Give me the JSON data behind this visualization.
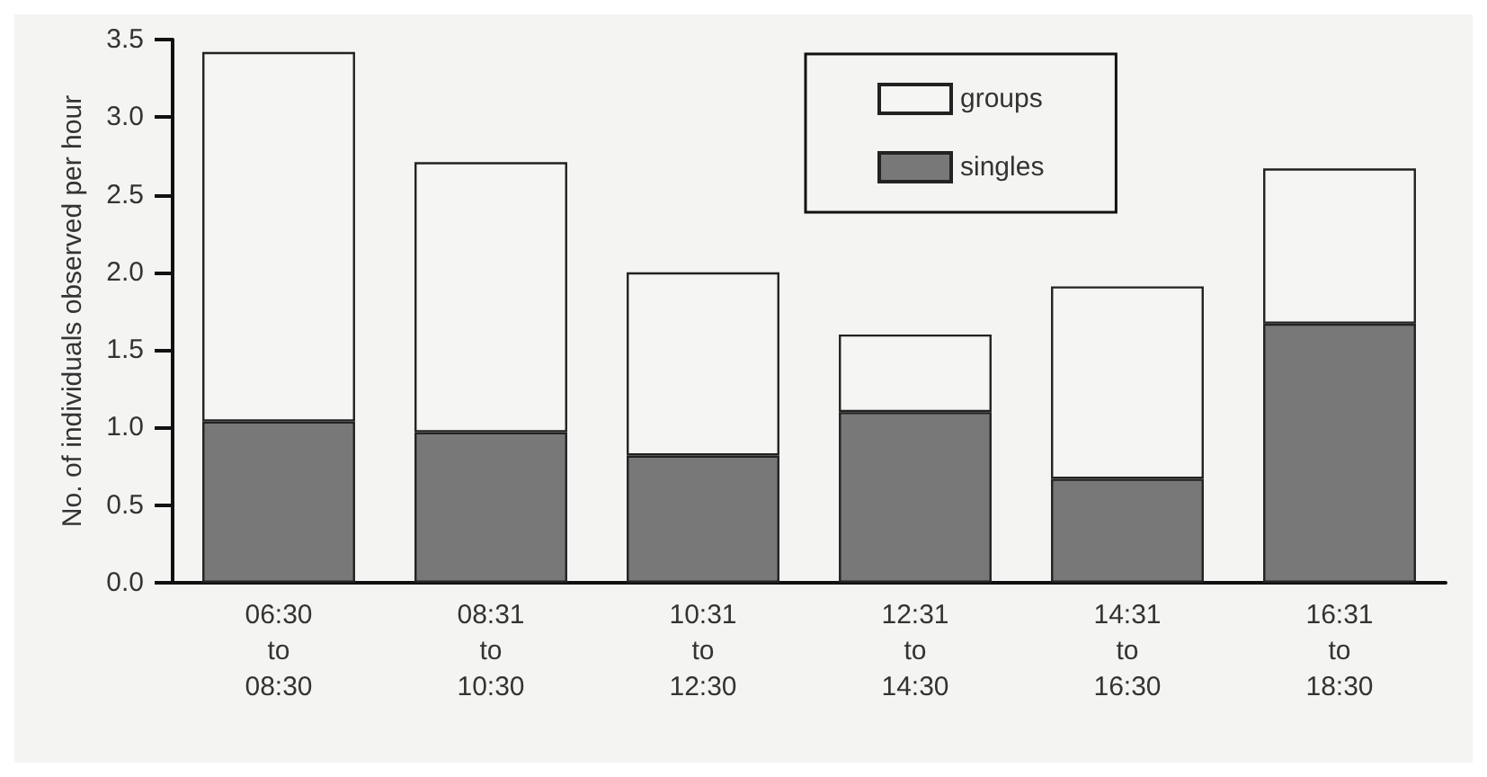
{
  "chart_data": {
    "type": "bar",
    "stacked": true,
    "ylabel": "No. of individuals observed per hour",
    "categories": [
      "06:30\nto\n08:30",
      "08:31\nto\n10:30",
      "10:31\nto\n12:30",
      "12:31\nto\n14:30",
      "14:31\nto\n16:30",
      "16:31\nto\n18:30"
    ],
    "series": [
      {
        "name": "singles",
        "color": "#787878",
        "values": [
          1.04,
          0.97,
          0.82,
          1.1,
          0.67,
          1.67
        ]
      },
      {
        "name": "groups",
        "color": "#f5f5f3",
        "values": [
          2.38,
          1.74,
          1.18,
          0.5,
          1.24,
          1.0
        ]
      }
    ],
    "ylim": [
      0,
      3.5
    ],
    "yticks": [
      {
        "value": 0,
        "label": "0.0"
      },
      {
        "value": 0.5,
        "label": "0.5"
      },
      {
        "value": 1,
        "label": "1.0"
      },
      {
        "value": 1.5,
        "label": "1.5"
      },
      {
        "value": 2,
        "label": "2.0"
      },
      {
        "value": 2.5,
        "label": "2.5"
      },
      {
        "value": 3,
        "label": "3.0"
      },
      {
        "value": 3.5,
        "label": "3.5"
      }
    ],
    "grid": false,
    "legend": "top right"
  }
}
